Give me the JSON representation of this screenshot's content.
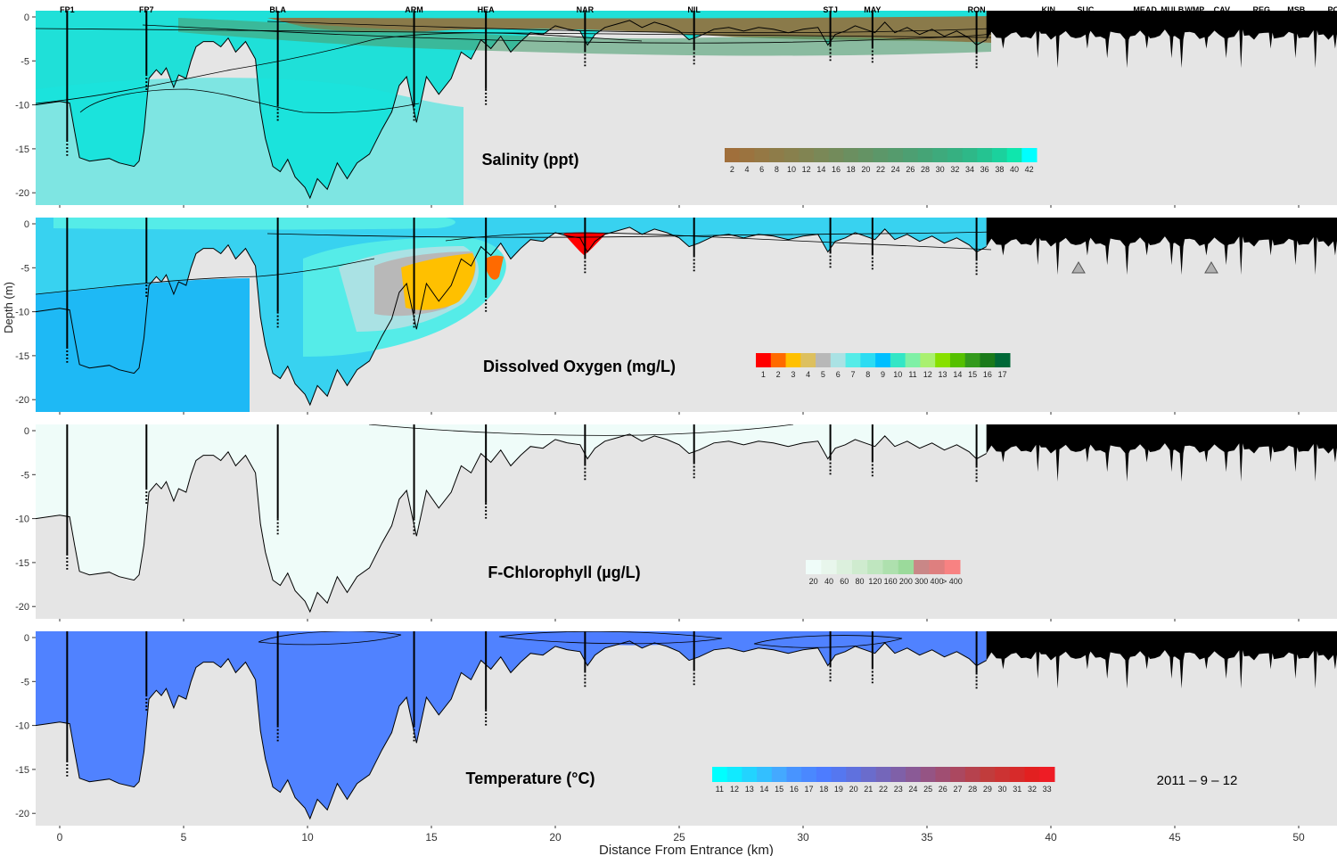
{
  "chart_data": [
    {
      "type": "heatmap",
      "title": "Salinity (ppt)",
      "stations": [
        {
          "name": "FP1",
          "km": 0.3
        },
        {
          "name": "FP7",
          "km": 3.5
        },
        {
          "name": "BLA",
          "km": 8.8
        },
        {
          "name": "ARM",
          "km": 14.3
        },
        {
          "name": "HEA",
          "km": 17.2
        },
        {
          "name": "NAR",
          "km": 21.2
        },
        {
          "name": "NIL",
          "km": 25.6
        },
        {
          "name": "STJ",
          "km": 31.1
        },
        {
          "name": "MAY",
          "km": 32.8
        },
        {
          "name": "RON",
          "km": 37.0
        },
        {
          "name": "KIN",
          "km": 39.9
        },
        {
          "name": "SUC",
          "km": 41.4
        },
        {
          "name": "MEAD",
          "km": 43.8
        },
        {
          "name": "MULB",
          "km": 44.9
        },
        {
          "name": "WMP",
          "km": 45.8
        },
        {
          "name": "CAV",
          "km": 46.9
        },
        {
          "name": "REG",
          "km": 48.5
        },
        {
          "name": "MSB",
          "km": 49.9
        },
        {
          "name": "POL",
          "km": 51.5
        }
      ],
      "legend": {
        "labels": [
          "2",
          "4",
          "6",
          "8",
          "10",
          "12",
          "14",
          "16",
          "18",
          "20",
          "22",
          "24",
          "26",
          "28",
          "30",
          "32",
          "34",
          "36",
          "38",
          "40",
          "42"
        ],
        "colors": [
          "#a06f3b",
          "#9b733f",
          "#957844",
          "#8e7c49",
          "#88804d",
          "#818452",
          "#7a8857",
          "#738b5b",
          "#6b8f60",
          "#649364",
          "#5c9769",
          "#559b6d",
          "#4d9f72",
          "#45a476",
          "#3eaa7c",
          "#36b081",
          "#2eb888",
          "#25c391",
          "#1bd19d",
          "#0fe6ad",
          "#00ffff"
        ]
      },
      "xlim": [
        -1,
        52
      ],
      "ylim": [
        -21,
        0.5
      ]
    },
    {
      "type": "heatmap",
      "title": "Dissolved Oxygen (mg/L)",
      "legend": {
        "labels": [
          "1",
          "2",
          "3",
          "4",
          "5",
          "6",
          "7",
          "8",
          "9",
          "10",
          "11",
          "12",
          "13",
          "14",
          "15",
          "16",
          "17"
        ],
        "colors": [
          "#ff0000",
          "#ff6a00",
          "#ffc000",
          "#ddc05f",
          "#b8b8b8",
          "#aae2e4",
          "#55ece8",
          "#2ddcf2",
          "#00bfff",
          "#33e6c6",
          "#7ff0a6",
          "#aaf070",
          "#88e000",
          "#55c000",
          "#339a1c",
          "#1a7a1a",
          "#006837"
        ]
      },
      "ylabel": "Depth (m)"
    },
    {
      "type": "heatmap",
      "title": "F-Chlorophyll (µg/L)",
      "legend": {
        "labels": [
          "20",
          "40",
          "60",
          "80",
          "120",
          "160",
          "200",
          "300",
          "400",
          "> 400"
        ],
        "colors": [
          "#effcf9",
          "#e8f6ec",
          "#dcf0dd",
          "#cfebcf",
          "#bfe6bf",
          "#aee0ae",
          "#9bda9b",
          "#c98787",
          "#de7f7f",
          "#f88282"
        ]
      }
    },
    {
      "type": "heatmap",
      "title": "Temperature (°C)",
      "date": "2011 – 9 – 12",
      "legend": {
        "labels": [
          "11",
          "12",
          "13",
          "14",
          "15",
          "16",
          "17",
          "18",
          "19",
          "20",
          "21",
          "22",
          "23",
          "24",
          "25",
          "26",
          "27",
          "28",
          "29",
          "30",
          "31",
          "32",
          "33"
        ],
        "colors": [
          "#00ffff",
          "#11eaff",
          "#22d4ff",
          "#33bfff",
          "#44a9ff",
          "#4894ff",
          "#4a88ff",
          "#4d7cff",
          "#5577f0",
          "#5f71de",
          "#6a6ccc",
          "#7466ba",
          "#7f60a8",
          "#8a5a96",
          "#955484",
          "#a04e72",
          "#ab4860",
          "#b6424e",
          "#c13c3c",
          "#cc3333",
          "#d72a2a",
          "#e22020",
          "#ee1c25"
        ]
      },
      "xlabel": "Distance From Entrance (km)",
      "xticks": [
        "0",
        "5",
        "10",
        "15",
        "20",
        "25",
        "30",
        "35",
        "40",
        "45",
        "50"
      ],
      "yticks": [
        "0",
        "-5",
        "-10",
        "-15",
        "-20"
      ]
    }
  ],
  "colors": {
    "panel_bg": "#e5e5e5",
    "bottom_line": "#000000",
    "salinity_main": "#1fe0d8",
    "salinity_surface": "#8a7a4a",
    "do_main": "#38d2f0",
    "do_deep": "#1eb9f5",
    "chl_main": "#effcf9",
    "temp_main": "#5082ff"
  }
}
